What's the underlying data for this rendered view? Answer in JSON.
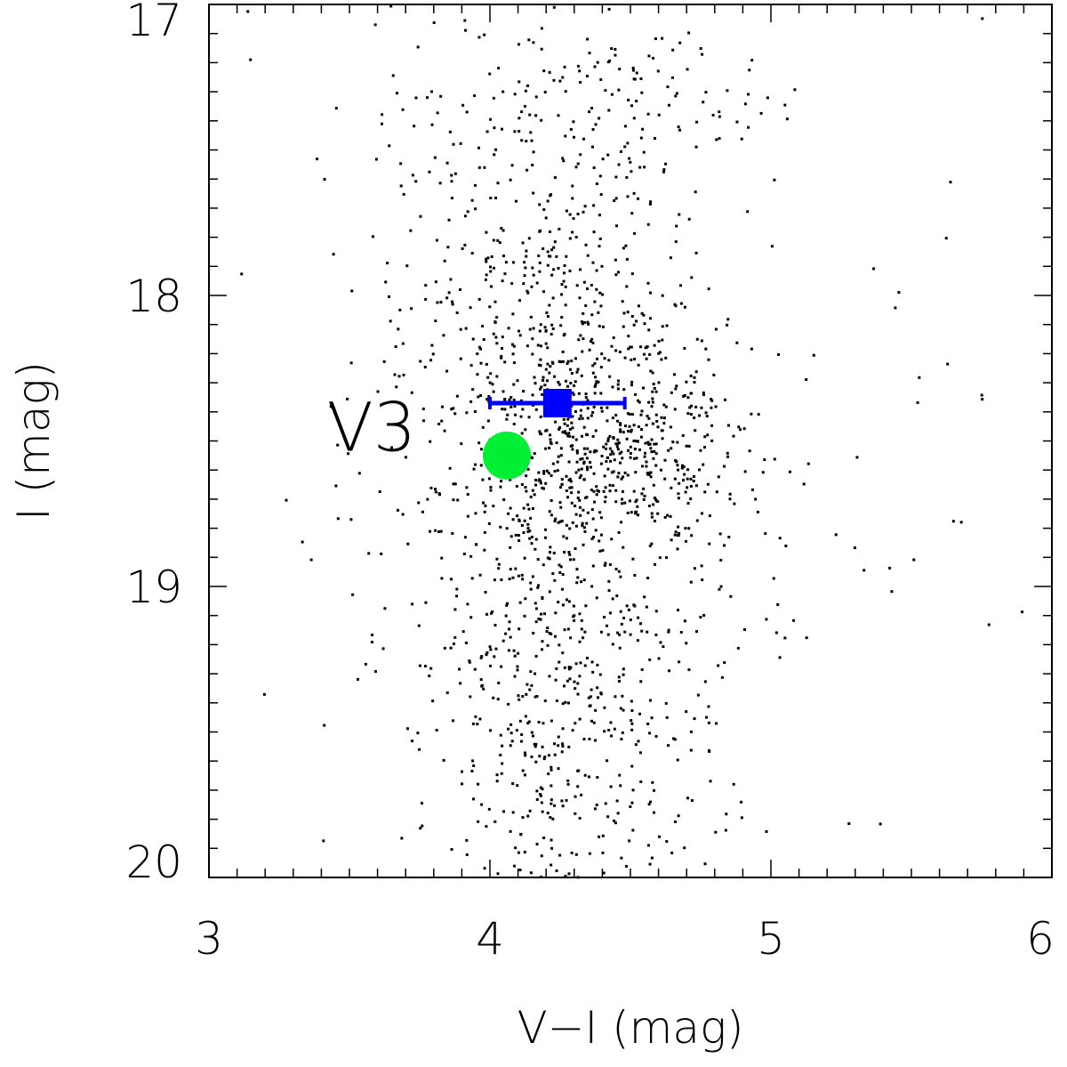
{
  "chart_data": {
    "type": "scatter",
    "title": "",
    "xlabel": "V−I (mag)",
    "ylabel": "I (mag)",
    "xlim": [
      3,
      6
    ],
    "ylim": [
      20,
      17
    ],
    "y_inverted": true,
    "x_ticks": [
      "3",
      "4",
      "5",
      "6"
    ],
    "y_ticks": [
      "17",
      "18",
      "19",
      "20"
    ],
    "grid": false,
    "legend": "none",
    "annotation": {
      "text": "V3",
      "x": 3.42,
      "y": 18.35
    },
    "series": [
      {
        "marker": "dot",
        "color": "#000000",
        "note_field_stars": "",
        "clusters": [
          {
            "cx": 4.25,
            "cy": 18.3,
            "sx": 0.28,
            "sy": 0.35,
            "n": 700
          },
          {
            "cx": 4.5,
            "cy": 18.55,
            "sx": 0.2,
            "sy": 0.15,
            "n": 250
          },
          {
            "cx": 4.25,
            "cy": 19.3,
            "sx": 0.28,
            "sy": 0.45,
            "n": 650
          },
          {
            "cx": 4.3,
            "cy": 17.4,
            "sx": 0.35,
            "sy": 0.25,
            "n": 220
          },
          {
            "cx": 4.45,
            "cy": 18.5,
            "sx": 0.75,
            "sy": 0.85,
            "n": 160
          }
        ]
      },
      {
        "marker": "square",
        "color": "#0000ff",
        "points": [
          {
            "x": 4.24,
            "y": 18.37,
            "xerr": 0.24
          }
        ]
      },
      {
        "marker": "circle",
        "color": "#00ee33",
        "points": [
          {
            "x": 4.06,
            "y": 18.55
          }
        ]
      }
    ]
  }
}
